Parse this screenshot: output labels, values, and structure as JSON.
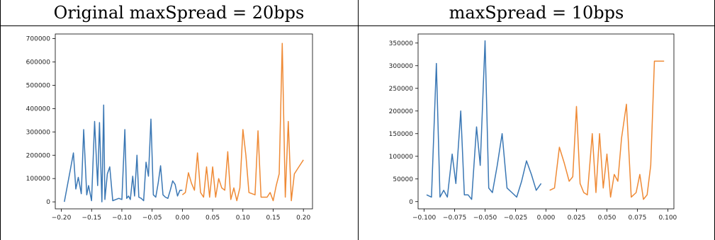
{
  "panels": [
    {
      "title": "Original maxSpread = 20bps"
    },
    {
      "title": "maxSpread = 10bps"
    }
  ],
  "colors": {
    "series_1": "#3a77b4",
    "series_2": "#ef8a35"
  },
  "chart_data": [
    {
      "type": "line",
      "title": "Original maxSpread = 20bps",
      "xlim": [
        -0.21,
        0.215
      ],
      "ylim": [
        -30000,
        720000
      ],
      "xticks": [
        -0.2,
        -0.15,
        -0.1,
        -0.05,
        0.0,
        0.05,
        0.1,
        0.15,
        0.2
      ],
      "xtick_labels": [
        "−0.20",
        "−0.15",
        "−0.10",
        "−0.05",
        "0.00",
        "0.05",
        "0.10",
        "0.15",
        "0.20"
      ],
      "yticks": [
        0,
        100000,
        200000,
        300000,
        400000,
        500000,
        600000,
        700000
      ],
      "ytick_labels": [
        "0",
        "100000",
        "200000",
        "300000",
        "400000",
        "500000",
        "600000",
        "700000"
      ],
      "grid": false,
      "series": [
        {
          "color": "#3a77b4",
          "x": [
            -0.195,
            -0.185,
            -0.18,
            -0.176,
            -0.172,
            -0.167,
            -0.163,
            -0.158,
            -0.155,
            -0.15,
            -0.145,
            -0.14,
            -0.137,
            -0.133,
            -0.13,
            -0.128,
            -0.124,
            -0.12,
            -0.115,
            -0.11,
            -0.105,
            -0.1,
            -0.095,
            -0.092,
            -0.089,
            -0.086,
            -0.082,
            -0.079,
            -0.075,
            -0.072,
            -0.068,
            -0.064,
            -0.06,
            -0.056,
            -0.052,
            -0.048,
            -0.044,
            -0.04,
            -0.036,
            -0.032,
            -0.028,
            -0.024,
            -0.02,
            -0.016,
            -0.012,
            -0.008,
            -0.004,
            0.0
          ],
          "y": [
            0,
            140000,
            210000,
            55000,
            105000,
            35000,
            310000,
            30000,
            70000,
            5000,
            345000,
            70000,
            340000,
            0,
            415000,
            10000,
            120000,
            150000,
            5000,
            10000,
            15000,
            10000,
            310000,
            15000,
            25000,
            10000,
            110000,
            25000,
            200000,
            20000,
            15000,
            5000,
            170000,
            110000,
            355000,
            30000,
            20000,
            80000,
            155000,
            30000,
            20000,
            15000,
            50000,
            90000,
            75000,
            25000,
            50000,
            50000
          ]
        },
        {
          "color": "#ef8a35",
          "x": [
            0.0,
            0.005,
            0.01,
            0.015,
            0.02,
            0.025,
            0.03,
            0.035,
            0.04,
            0.045,
            0.05,
            0.055,
            0.06,
            0.065,
            0.07,
            0.075,
            0.08,
            0.085,
            0.09,
            0.095,
            0.1,
            0.105,
            0.11,
            0.115,
            0.12,
            0.125,
            0.13,
            0.135,
            0.14,
            0.145,
            0.15,
            0.155,
            0.16,
            0.165,
            0.17,
            0.175,
            0.18,
            0.185,
            0.19,
            0.195,
            0.2
          ],
          "y": [
            30000,
            40000,
            125000,
            80000,
            50000,
            210000,
            40000,
            20000,
            150000,
            20000,
            150000,
            20000,
            100000,
            60000,
            50000,
            215000,
            10000,
            60000,
            5000,
            60000,
            310000,
            200000,
            40000,
            35000,
            30000,
            305000,
            20000,
            20000,
            20000,
            40000,
            5000,
            70000,
            120000,
            680000,
            20000,
            345000,
            5000,
            120000,
            140000,
            160000,
            180000
          ]
        }
      ]
    },
    {
      "type": "line",
      "title": "maxSpread = 10bps",
      "xlim": [
        -0.105,
        0.105
      ],
      "ylim": [
        -16000,
        370000
      ],
      "xticks": [
        -0.1,
        -0.075,
        -0.05,
        -0.025,
        0.0,
        0.025,
        0.05,
        0.075,
        0.1
      ],
      "xtick_labels": [
        "−0.100",
        "−0.075",
        "−0.050",
        "−0.025",
        "0.000",
        "0.025",
        "0.050",
        "0.075",
        "0.100"
      ],
      "yticks": [
        0,
        50000,
        100000,
        150000,
        200000,
        250000,
        300000,
        350000
      ],
      "ytick_labels": [
        "0",
        "50000",
        "100000",
        "150000",
        "200000",
        "250000",
        "300000",
        "350000"
      ],
      "grid": false,
      "series": [
        {
          "color": "#3a77b4",
          "x": [
            -0.098,
            -0.094,
            -0.09,
            -0.087,
            -0.084,
            -0.081,
            -0.077,
            -0.074,
            -0.07,
            -0.067,
            -0.064,
            -0.061,
            -0.057,
            -0.054,
            -0.05,
            -0.047,
            -0.044,
            -0.04,
            -0.036,
            -0.032,
            -0.028,
            -0.024,
            -0.02,
            -0.016,
            -0.012,
            -0.008,
            -0.004
          ],
          "y": [
            15000,
            10000,
            305000,
            10000,
            25000,
            10000,
            105000,
            40000,
            200000,
            15000,
            15000,
            5000,
            165000,
            80000,
            355000,
            30000,
            20000,
            80000,
            150000,
            30000,
            20000,
            10000,
            45000,
            90000,
            60000,
            25000,
            40000
          ]
        },
        {
          "color": "#ef8a35",
          "x": [
            0.003,
            0.007,
            0.011,
            0.015,
            0.019,
            0.022,
            0.025,
            0.028,
            0.031,
            0.034,
            0.038,
            0.041,
            0.044,
            0.047,
            0.05,
            0.053,
            0.056,
            0.059,
            0.062,
            0.066,
            0.07,
            0.074,
            0.077,
            0.08,
            0.083,
            0.086,
            0.089,
            0.093,
            0.097
          ],
          "y": [
            25000,
            30000,
            120000,
            85000,
            45000,
            55000,
            210000,
            40000,
            20000,
            15000,
            150000,
            20000,
            150000,
            30000,
            105000,
            10000,
            60000,
            45000,
            140000,
            215000,
            10000,
            20000,
            60000,
            5000,
            15000,
            80000,
            310000,
            310000,
            310000
          ]
        }
      ]
    }
  ]
}
